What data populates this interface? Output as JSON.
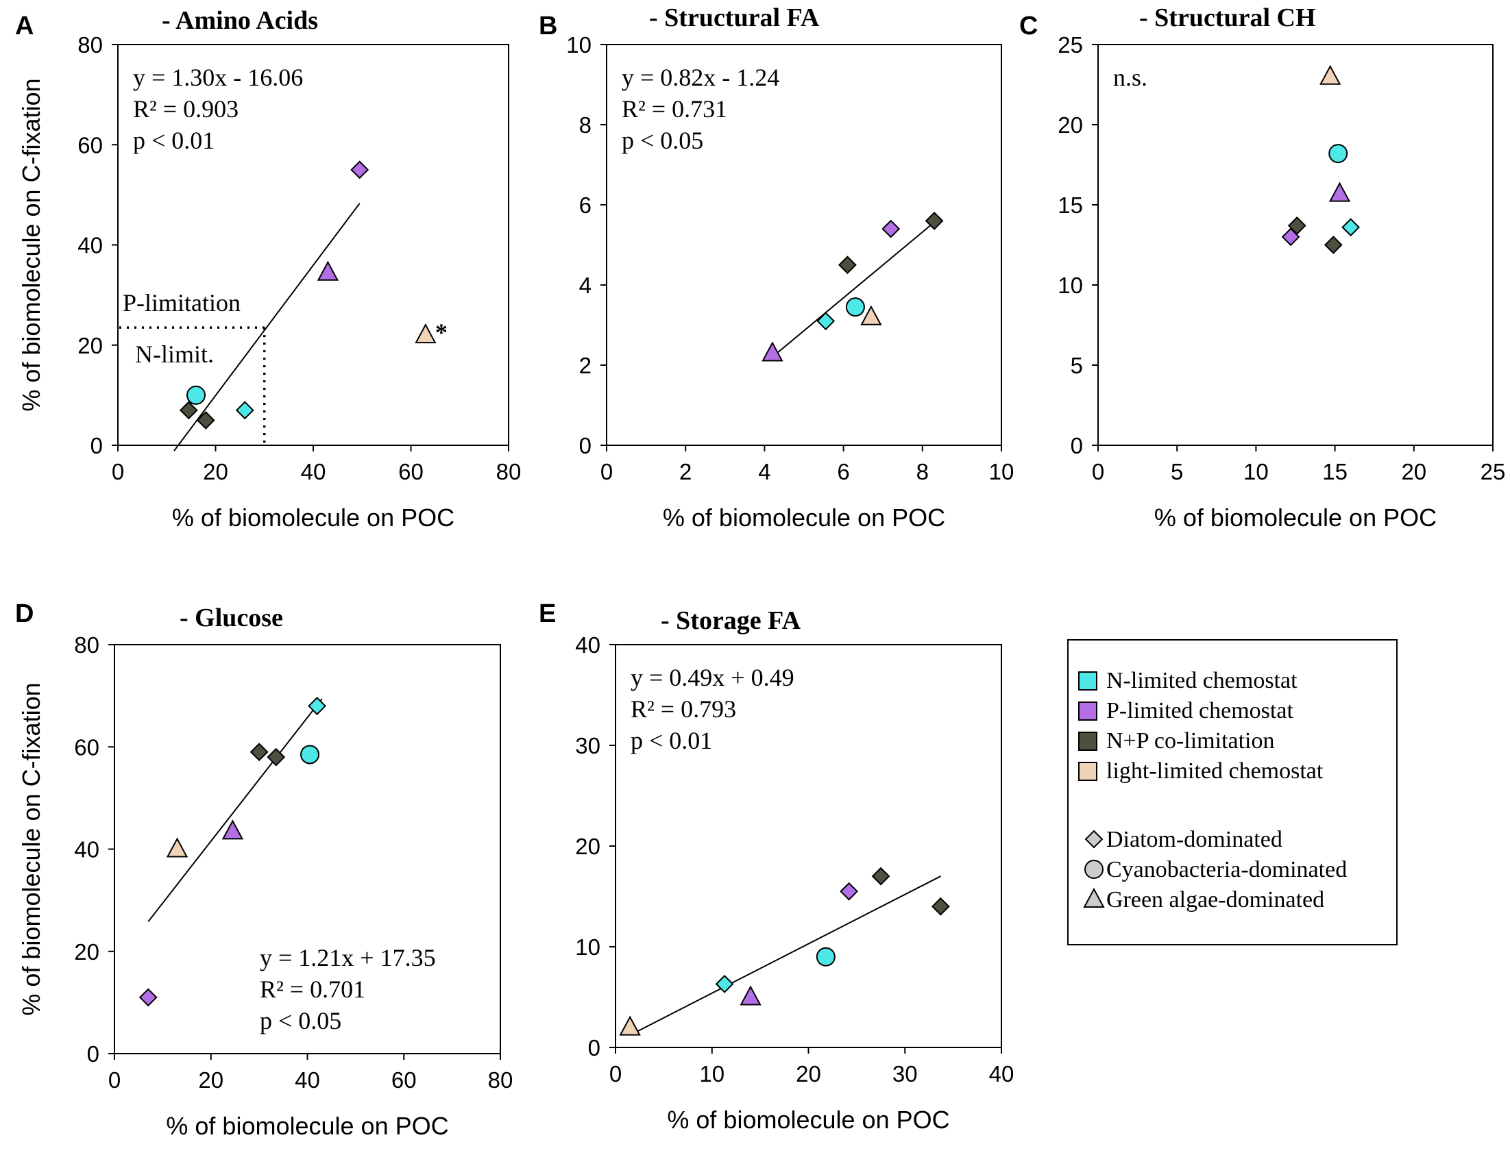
{
  "colors": {
    "N": "#4ee8e8",
    "P": "#b46ee6",
    "NP": "#4f4f3f",
    "L": "#f0d3b6",
    "grey": "#cccccc"
  },
  "legend": {
    "groups": [
      {
        "key": "N",
        "label": "N-limited chemostat"
      },
      {
        "key": "P",
        "label": "P-limited chemostat"
      },
      {
        "key": "NP",
        "label": "N+P co-limitation"
      },
      {
        "key": "L",
        "label": "light-limited chemostat"
      }
    ],
    "shapes": [
      {
        "shape": "diamond",
        "label": "Diatom-dominated"
      },
      {
        "shape": "circle",
        "label": "Cyanobacteria-dominated"
      },
      {
        "shape": "triangle",
        "label": "Green algae-dominated"
      }
    ]
  },
  "chart_data": [
    {
      "type": "scatter",
      "panel": "A",
      "title": "- Amino Acids",
      "xlabel": "% of biomolecule on POC",
      "ylabel": "% of biomolecule on C-fixation",
      "xlim": [
        0,
        80
      ],
      "ylim": [
        0,
        80
      ],
      "xticks": [
        "0",
        "20",
        "40",
        "60",
        "80"
      ],
      "yticks": [
        "0",
        "20",
        "40",
        "60",
        "80"
      ],
      "stats": [
        "y = 1.30x - 16.06",
        "R² = 0.903",
        "p < 0.01"
      ],
      "stats_pos": "top-left",
      "fit": {
        "slope": 1.3,
        "intercept": -16.06,
        "x_range": [
          11.5,
          49.5
        ]
      },
      "points": [
        {
          "x": 49.5,
          "y": 55,
          "group": "P",
          "shape": "diamond"
        },
        {
          "x": 43,
          "y": 34.5,
          "group": "P",
          "shape": "triangle"
        },
        {
          "x": 16,
          "y": 10,
          "group": "N",
          "shape": "circle"
        },
        {
          "x": 26,
          "y": 7,
          "group": "N",
          "shape": "diamond"
        },
        {
          "x": 14.5,
          "y": 7,
          "group": "NP",
          "shape": "diamond"
        },
        {
          "x": 18,
          "y": 5,
          "group": "NP",
          "shape": "diamond"
        },
        {
          "x": 63,
          "y": 22,
          "group": "L",
          "shape": "triangle",
          "mark": "*"
        }
      ],
      "annotations": {
        "upper": "P-limitation",
        "lower": "N-limit.",
        "threshold_x": 30,
        "threshold_y": 23.5
      }
    },
    {
      "type": "scatter",
      "panel": "B",
      "title": "- Structural FA",
      "xlabel": "% of biomolecule on POC",
      "ylabel": "",
      "xlim": [
        0,
        10
      ],
      "ylim": [
        0,
        10
      ],
      "xticks": [
        "0",
        "2",
        "4",
        "6",
        "8",
        "10"
      ],
      "yticks": [
        "0",
        "2",
        "4",
        "6",
        "8",
        "10"
      ],
      "stats": [
        "y = 0.82x - 1.24",
        "R² = 0.731",
        "p < 0.05"
      ],
      "stats_pos": "top-left",
      "fit": {
        "slope": 0.82,
        "intercept": -1.24,
        "x_range": [
          4.2,
          8.3
        ]
      },
      "points": [
        {
          "x": 8.3,
          "y": 5.6,
          "group": "NP",
          "shape": "diamond"
        },
        {
          "x": 7.2,
          "y": 5.4,
          "group": "P",
          "shape": "diamond"
        },
        {
          "x": 6.1,
          "y": 4.5,
          "group": "NP",
          "shape": "diamond"
        },
        {
          "x": 6.3,
          "y": 3.45,
          "group": "N",
          "shape": "circle"
        },
        {
          "x": 6.7,
          "y": 3.2,
          "group": "L",
          "shape": "triangle"
        },
        {
          "x": 5.55,
          "y": 3.1,
          "group": "N",
          "shape": "diamond"
        },
        {
          "x": 4.2,
          "y": 2.3,
          "group": "P",
          "shape": "triangle"
        }
      ]
    },
    {
      "type": "scatter",
      "panel": "C",
      "title": "- Structural CH",
      "xlabel": "% of biomolecule on POC",
      "ylabel": "",
      "xlim": [
        0,
        25
      ],
      "ylim": [
        0,
        25
      ],
      "xticks": [
        "0",
        "5",
        "10",
        "15",
        "20",
        "25"
      ],
      "yticks": [
        "0",
        "5",
        "10",
        "15",
        "20",
        "25"
      ],
      "stats": [
        "n.s."
      ],
      "stats_pos": "top-left",
      "points": [
        {
          "x": 14.7,
          "y": 23,
          "group": "L",
          "shape": "triangle"
        },
        {
          "x": 15.2,
          "y": 18.2,
          "group": "N",
          "shape": "circle"
        },
        {
          "x": 15.3,
          "y": 15.7,
          "group": "P",
          "shape": "triangle"
        },
        {
          "x": 16,
          "y": 13.6,
          "group": "N",
          "shape": "diamond"
        },
        {
          "x": 12.6,
          "y": 13.7,
          "group": "NP",
          "shape": "diamond"
        },
        {
          "x": 12.2,
          "y": 13,
          "group": "P",
          "shape": "diamond"
        },
        {
          "x": 14.9,
          "y": 12.5,
          "group": "NP",
          "shape": "diamond"
        }
      ]
    },
    {
      "type": "scatter",
      "panel": "D",
      "title": "- Glucose",
      "xlabel": "% of biomolecule on POC",
      "ylabel": "% of biomolecule on C-fixation",
      "xlim": [
        0,
        80
      ],
      "ylim": [
        0,
        80
      ],
      "xticks": [
        "0",
        "20",
        "40",
        "60",
        "80"
      ],
      "yticks": [
        "0",
        "20",
        "40",
        "60",
        "80"
      ],
      "stats": [
        "y = 1.21x + 17.35",
        "R² = 0.701",
        "p < 0.05"
      ],
      "stats_pos": "bottom-right",
      "fit": {
        "slope": 1.21,
        "intercept": 17.35,
        "x_range": [
          7,
          43
        ]
      },
      "points": [
        {
          "x": 42,
          "y": 68,
          "group": "N",
          "shape": "diamond"
        },
        {
          "x": 30,
          "y": 59,
          "group": "NP",
          "shape": "diamond"
        },
        {
          "x": 33.5,
          "y": 58,
          "group": "NP",
          "shape": "diamond"
        },
        {
          "x": 40.5,
          "y": 58.5,
          "group": "N",
          "shape": "circle"
        },
        {
          "x": 24.5,
          "y": 43.5,
          "group": "P",
          "shape": "triangle"
        },
        {
          "x": 13,
          "y": 40,
          "group": "L",
          "shape": "triangle"
        },
        {
          "x": 7,
          "y": 11,
          "group": "P",
          "shape": "diamond"
        }
      ]
    },
    {
      "type": "scatter",
      "panel": "E",
      "title": "- Storage FA",
      "xlabel": "% of biomolecule on POC",
      "ylabel": "",
      "xlim": [
        0,
        40
      ],
      "ylim": [
        0,
        40
      ],
      "xticks": [
        "0",
        "10",
        "20",
        "30",
        "40"
      ],
      "yticks": [
        "0",
        "10",
        "20",
        "30",
        "40"
      ],
      "stats": [
        "y = 0.49x + 0.49",
        "R² = 0.793",
        "p < 0.01"
      ],
      "stats_pos": "top-left",
      "fit": {
        "slope": 0.49,
        "intercept": 0.49,
        "x_range": [
          1.5,
          33.7
        ]
      },
      "points": [
        {
          "x": 27.5,
          "y": 17,
          "group": "NP",
          "shape": "diamond"
        },
        {
          "x": 24.2,
          "y": 15.5,
          "group": "P",
          "shape": "diamond"
        },
        {
          "x": 33.7,
          "y": 14,
          "group": "NP",
          "shape": "diamond"
        },
        {
          "x": 21.8,
          "y": 9,
          "group": "N",
          "shape": "circle"
        },
        {
          "x": 11.3,
          "y": 6.3,
          "group": "N",
          "shape": "diamond"
        },
        {
          "x": 14,
          "y": 5,
          "group": "P",
          "shape": "triangle"
        },
        {
          "x": 1.5,
          "y": 2,
          "group": "L",
          "shape": "triangle"
        }
      ]
    }
  ]
}
